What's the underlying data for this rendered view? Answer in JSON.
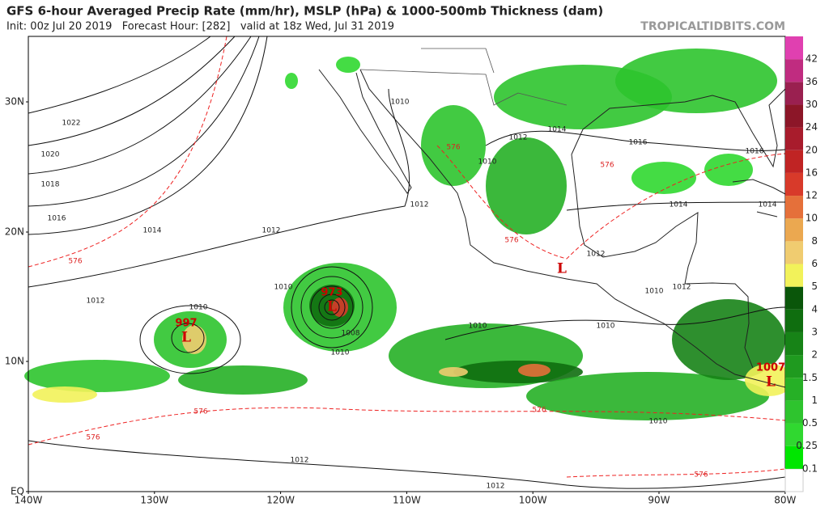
{
  "header": {
    "title": "GFS 6-hour Averaged Precip Rate (mm/hr), MSLP (hPa) & 1000-500mb Thickness (dam)",
    "subtitle": "Init: 00z Jul 20 2019   Forecast Hour: [282]   valid at 18z Wed, Jul 31 2019",
    "watermark": "TROPICALTIDBITS.COM"
  },
  "axes": {
    "lat_labels": [
      "30N",
      "20N",
      "10N",
      "EQ"
    ],
    "lon_labels": [
      "140W",
      "130W",
      "120W",
      "110W",
      "100W",
      "90W",
      "80W"
    ]
  },
  "colorbar": {
    "labels": [
      "0.1",
      "0.25",
      "0.5",
      "1",
      "1.5",
      "2",
      "3",
      "4",
      "5",
      "6",
      "8",
      "10",
      "12",
      "16",
      "20",
      "24",
      "30",
      "36",
      "42"
    ],
    "colors": [
      "#00e600",
      "#30d830",
      "#2ec42e",
      "#26b026",
      "#1f9a1f",
      "#178317",
      "#0f6e0f",
      "#0a560a",
      "#f2f25a",
      "#f0cc70",
      "#eba850",
      "#e5703a",
      "#d83a2a",
      "#c02424",
      "#a81c2c",
      "#8c1628",
      "#9a2050",
      "#c02c80",
      "#e040b0",
      "#f060c8"
    ]
  },
  "isobar_labels": [
    "1022",
    "1020",
    "1018",
    "1016",
    "1014",
    "1012",
    "1012",
    "1010",
    "1010",
    "1008",
    "1010",
    "1012",
    "1010",
    "1012",
    "1010",
    "1014",
    "1016",
    "1016",
    "1014",
    "1014",
    "1010",
    "1010",
    "1012",
    "1010",
    "1012",
    "1010",
    "1012",
    "1012"
  ],
  "thickness_labels": [
    "576",
    "576",
    "576",
    "576",
    "576",
    "576",
    "576",
    "576"
  ],
  "lows": [
    {
      "pressure": "997",
      "symbol": "L"
    },
    {
      "pressure": "973",
      "symbol": "L"
    },
    {
      "symbol": "L"
    },
    {
      "pressure": "1007",
      "symbol": "L"
    }
  ]
}
